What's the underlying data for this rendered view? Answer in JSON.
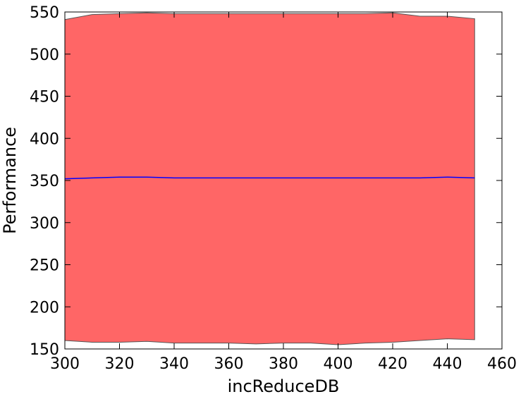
{
  "chart_data": {
    "type": "band-line",
    "xlabel": "incReduceDB",
    "ylabel": "Performance",
    "x": [
      300,
      310,
      320,
      330,
      340,
      350,
      360,
      370,
      380,
      390,
      400,
      410,
      420,
      430,
      440,
      450
    ],
    "values": [
      352,
      353,
      354,
      354,
      353,
      353,
      353,
      353,
      353,
      353,
      353,
      353,
      353,
      353,
      354,
      353
    ],
    "upper": [
      541,
      547,
      548,
      549,
      548,
      548,
      548,
      548,
      548,
      548,
      548,
      548,
      549,
      545,
      545,
      542
    ],
    "lower": [
      160,
      158,
      158,
      159,
      157,
      157,
      157,
      156,
      157,
      157,
      155,
      157,
      158,
      160,
      162,
      161
    ],
    "line_color": "#0000ff",
    "fill_color": "#ff6666",
    "xlim": [
      300,
      460
    ],
    "ylim": [
      150,
      550
    ],
    "xticks": [
      300,
      320,
      340,
      360,
      380,
      400,
      420,
      440,
      460
    ],
    "yticks": [
      150,
      200,
      250,
      300,
      350,
      400,
      450,
      500,
      550
    ]
  }
}
